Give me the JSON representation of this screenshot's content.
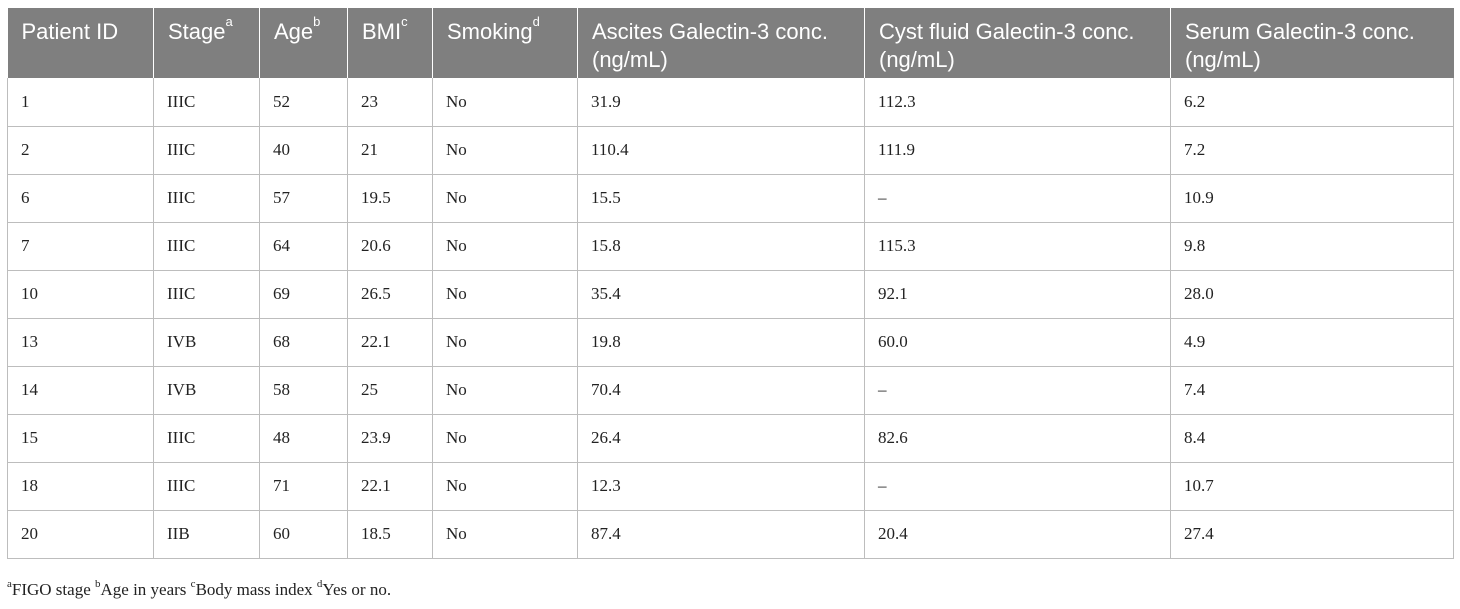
{
  "headers": [
    {
      "label": "Patient ID",
      "sup": ""
    },
    {
      "label": "Stage",
      "sup": "a"
    },
    {
      "label": "Age",
      "sup": "b"
    },
    {
      "label": "BMI",
      "sup": "c"
    },
    {
      "label": "Smoking",
      "sup": "d"
    },
    {
      "label": "Ascites Galectin-3 conc. (ng/mL)",
      "sup": ""
    },
    {
      "label": "Cyst fluid Galectin-3 conc. (ng/mL)",
      "sup": ""
    },
    {
      "label": "Serum Galectin-3 conc. (ng/mL)",
      "sup": ""
    }
  ],
  "rows": [
    [
      "1",
      "IIIC",
      "52",
      "23",
      "No",
      "31.9",
      "112.3",
      "6.2"
    ],
    [
      "2",
      "IIIC",
      "40",
      "21",
      "No",
      "110.4",
      "111.9",
      "7.2"
    ],
    [
      "6",
      "IIIC",
      "57",
      "19.5",
      "No",
      "15.5",
      "–",
      "10.9"
    ],
    [
      "7",
      "IIIC",
      "64",
      "20.6",
      "No",
      "15.8",
      "115.3",
      "9.8"
    ],
    [
      "10",
      "IIIC",
      "69",
      "26.5",
      "No",
      "35.4",
      "92.1",
      "28.0"
    ],
    [
      "13",
      "IVB",
      "68",
      "22.1",
      "No",
      "19.8",
      "60.0",
      "4.9"
    ],
    [
      "14",
      "IVB",
      "58",
      "25",
      "No",
      "70.4",
      "–",
      "7.4"
    ],
    [
      "15",
      "IIIC",
      "48",
      "23.9",
      "No",
      "26.4",
      "82.6",
      "8.4"
    ],
    [
      "18",
      "IIIC",
      "71",
      "22.1",
      "No",
      "12.3",
      "–",
      "10.7"
    ],
    [
      "20",
      "IIB",
      "60",
      "18.5",
      "No",
      "87.4",
      "20.4",
      "27.4"
    ]
  ],
  "footnotes": [
    {
      "sup": "a",
      "text": "FIGO stage "
    },
    {
      "sup": "b",
      "text": "Age in years "
    },
    {
      "sup": "c",
      "text": "Body mass index "
    },
    {
      "sup": "d",
      "text": "Yes or no."
    }
  ]
}
